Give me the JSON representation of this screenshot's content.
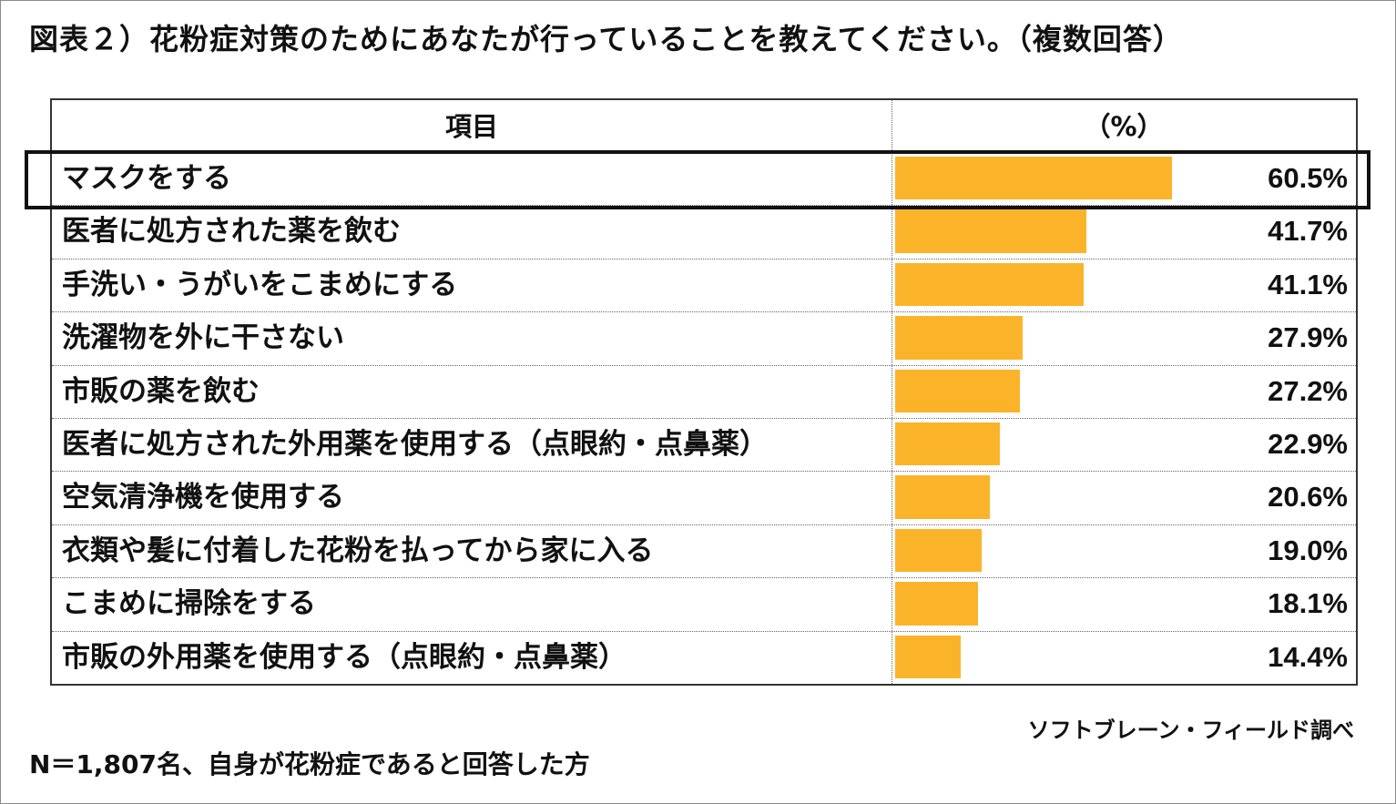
{
  "title": "図表２）花粉症対策のためにあなたが行っていることを教えてください。（複数回答）",
  "header": {
    "item_label": "項目",
    "value_label": "（%）"
  },
  "colors": {
    "bar": "#FBB42A",
    "border": "#333333"
  },
  "highlighted_row": 0,
  "chart_data": {
    "type": "bar",
    "orientation": "horizontal",
    "categories": [
      "マスクをする",
      "医者に処方された薬を飲む",
      "手洗い・うがいをこまめにする",
      "洗濯物を外に干さない",
      "市販の薬を飲む",
      "医者に処方された外用薬を使用する（点眼約・点鼻薬）",
      "空気清浄機を使用する",
      "衣類や髪に付着した花粉を払ってから家に入る",
      "こまめに掃除をする",
      "市販の外用薬を使用する（点眼約・点鼻薬）"
    ],
    "values": [
      60.5,
      41.7,
      41.1,
      27.9,
      27.2,
      22.9,
      20.6,
      19.0,
      18.1,
      14.4
    ],
    "value_labels": [
      "60.5%",
      "41.7%",
      "41.1%",
      "27.9%",
      "27.2%",
      "22.9%",
      "20.6%",
      "19.0%",
      "18.1%",
      "14.4%"
    ],
    "unit": "%",
    "xlim": [
      0,
      100
    ]
  },
  "source": "ソフトブレーン・フィールド調べ",
  "footnote": "N＝1,807名、自身が花粉症であると回答した方"
}
